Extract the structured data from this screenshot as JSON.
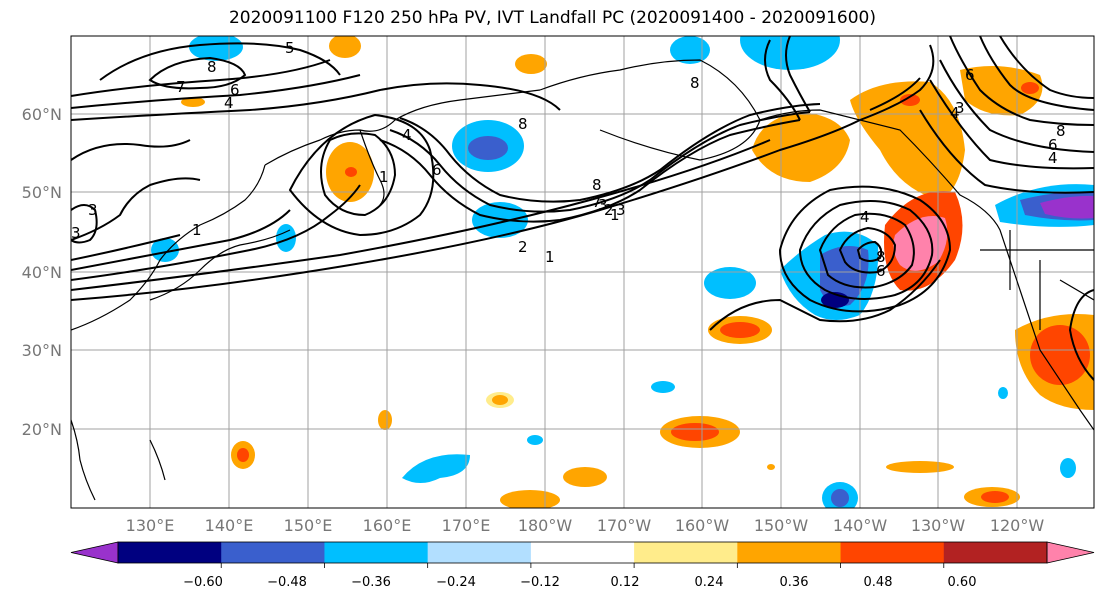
{
  "title": "2020091100 F120 250 hPa PV, IVT Landfall PC (2020091400 - 2020091600)",
  "lat_ticks": [
    "20°N",
    "30°N",
    "40°N",
    "50°N",
    "60°N"
  ],
  "lon_ticks": [
    "130°E",
    "140°E",
    "150°E",
    "160°E",
    "170°E",
    "180°W",
    "170°W",
    "160°W",
    "150°W",
    "140°W",
    "130°W",
    "120°W"
  ],
  "colorbar": {
    "colors": [
      "#9932cc",
      "#000080",
      "#3a5fcd",
      "#00bfff",
      "#b2dfff",
      "#ffffff",
      "#ffec8b",
      "#ffa500",
      "#ff4500",
      "#b22222",
      "#ff82ab"
    ],
    "tick_labels": [
      "−0.60",
      "−0.48",
      "−0.36",
      "−0.24",
      "−0.12",
      "0.12",
      "0.24",
      "0.36",
      "0.48",
      "0.60"
    ]
  },
  "contour_labels": [
    "5",
    "8",
    "7",
    "6",
    "4",
    "8",
    "6",
    "4",
    "1",
    "3",
    "1",
    "2",
    "3",
    "1",
    "8",
    "7",
    "3",
    "2",
    "1",
    "8",
    "6",
    "4",
    "4",
    "6",
    "8",
    "8",
    "6",
    "4",
    "3",
    "3"
  ]
}
